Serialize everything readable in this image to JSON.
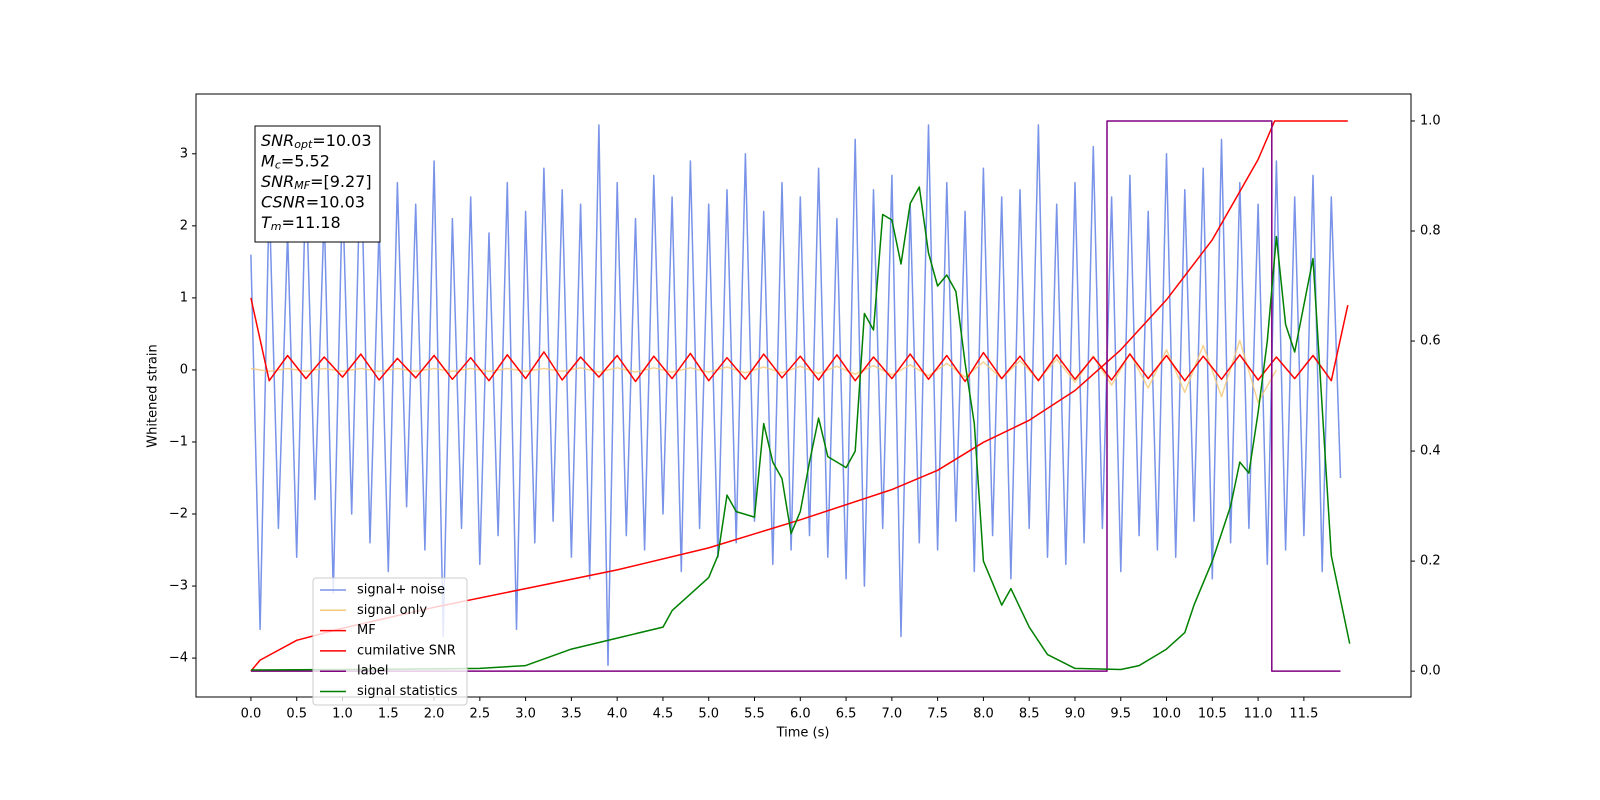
{
  "chart_data": {
    "type": "line",
    "xlabel": "Time (s)",
    "ylabel": "Whitened strain",
    "xlim": [
      -0.6,
      12.67
    ],
    "ylim": [
      -4.54,
      3.83
    ],
    "y2lim": [
      -0.047,
      1.049
    ],
    "xticks": [
      {
        "value": 0,
        "label": "0.0"
      },
      0.5,
      {
        "value": 1,
        "label": "1.0"
      },
      1.5,
      {
        "value": 2,
        "label": "2.0"
      },
      2.5,
      {
        "value": 3,
        "label": "3.0"
      },
      3.5,
      {
        "value": 4,
        "label": "4.0"
      },
      4.5,
      {
        "value": 5,
        "label": "5.0"
      },
      5.5,
      {
        "value": 6,
        "label": "6.0"
      },
      6.5,
      {
        "value": 7,
        "label": "7.0"
      },
      7.5,
      {
        "value": 8,
        "label": "8.0"
      },
      8.5,
      {
        "value": 9,
        "label": "9.0"
      },
      9.5,
      {
        "value": 10,
        "label": "10.0"
      },
      10.5,
      {
        "value": 11,
        "label": "11.0"
      },
      11.5
    ],
    "yticks": [
      {
        "value": -4,
        "label": "−4"
      },
      {
        "value": -3,
        "label": "−3"
      },
      {
        "value": -2,
        "label": "−2"
      },
      {
        "value": -1,
        "label": "−1"
      },
      0,
      1,
      2,
      3
    ],
    "y2ticks": [
      {
        "value": 0,
        "label": "0.0"
      },
      0.2,
      0.4,
      0.6,
      0.8,
      {
        "value": 1,
        "label": "1.0"
      }
    ],
    "legend": "lower left",
    "annotation": [
      {
        "symbol": "SNR",
        "subscript": "opt",
        "text": "=10.03"
      },
      {
        "symbol": "M",
        "subscript": "c",
        "text": "=5.52"
      },
      {
        "symbol": "SNR",
        "subscript": "MF",
        "text": "=[9.27]"
      },
      {
        "symbol": "CSNR",
        "text": "=10.03"
      },
      {
        "symbol": "T",
        "subscript": "m",
        "text": "=11.18"
      }
    ],
    "series": [
      {
        "name": "signal+ noise",
        "color": "#7893e8",
        "x": [
          0,
          0.1,
          0.2,
          0.3,
          0.4,
          0.5,
          0.6,
          0.7,
          0.8,
          0.9,
          1,
          1.1,
          1.2,
          1.3,
          1.4,
          1.5,
          1.6,
          1.7,
          1.8,
          1.9,
          2,
          2.1,
          2.2,
          2.3,
          2.4,
          2.5,
          2.6,
          2.7,
          2.8,
          2.9,
          3,
          3.1,
          3.2,
          3.3,
          3.4,
          3.5,
          3.6,
          3.7,
          3.8,
          3.9,
          4,
          4.1,
          4.2,
          4.3,
          4.4,
          4.5,
          4.6,
          4.7,
          4.8,
          4.9,
          5,
          5.1,
          5.2,
          5.3,
          5.4,
          5.5,
          5.6,
          5.7,
          5.8,
          5.9,
          6,
          6.1,
          6.2,
          6.3,
          6.4,
          6.5,
          6.6,
          6.7,
          6.8,
          6.9,
          7,
          7.1,
          7.2,
          7.3,
          7.4,
          7.5,
          7.6,
          7.7,
          7.8,
          7.9,
          8,
          8.1,
          8.2,
          8.3,
          8.4,
          8.5,
          8.6,
          8.7,
          8.8,
          8.9,
          9,
          9.1,
          9.2,
          9.3,
          9.4,
          9.5,
          9.6,
          9.7,
          9.8,
          9.9,
          10,
          10.1,
          10.2,
          10.3,
          10.4,
          10.5,
          10.6,
          10.7,
          10.8,
          10.9,
          11,
          11.1,
          11.2,
          11.3,
          11.4,
          11.5,
          11.6,
          11.7,
          11.8,
          11.9
        ],
        "values": [
          1.6,
          -3.6,
          2.4,
          -2.2,
          1.9,
          -2.6,
          2.7,
          -1.8,
          2.2,
          -3.1,
          2.5,
          -2.0,
          3.1,
          -2.4,
          2.0,
          -2.8,
          2.6,
          -1.9,
          2.3,
          -2.5,
          2.9,
          -3.7,
          2.1,
          -2.2,
          2.4,
          -2.7,
          1.9,
          -2.3,
          2.6,
          -3.6,
          2.2,
          -2.4,
          2.8,
          -2.1,
          2.5,
          -2.6,
          2.3,
          -2.9,
          3.4,
          -4.1,
          2.6,
          -2.3,
          2.1,
          -2.5,
          2.7,
          -2.0,
          2.4,
          -2.8,
          2.9,
          -2.2,
          2.3,
          -2.6,
          2.5,
          -2.4,
          3.0,
          -2.1,
          2.2,
          -2.7,
          2.6,
          -2.5,
          2.4,
          -2.3,
          2.8,
          -2.6,
          2.1,
          -2.9,
          3.2,
          -3.0,
          2.5,
          -2.2,
          2.7,
          -3.7,
          2.3,
          -2.4,
          3.4,
          -2.5,
          2.6,
          -2.1,
          2.2,
          -2.8,
          2.8,
          -2.3,
          2.4,
          -2.9,
          2.5,
          -2.2,
          3.4,
          -2.6,
          2.3,
          -2.7,
          2.6,
          -2.4,
          3.1,
          -2.2,
          2.4,
          -2.8,
          2.7,
          -2.3,
          2.2,
          -2.5,
          3.0,
          -2.6,
          2.5,
          -2.1,
          2.8,
          -2.9,
          3.2,
          -2.4,
          2.6,
          -2.2,
          2.3,
          -2.7,
          2.9,
          -2.5,
          2.4,
          -2.3,
          2.7,
          -2.8,
          2.4,
          -1.5
        ]
      },
      {
        "name": "signal only",
        "color": "#f5c878",
        "x": [
          0,
          0.2,
          0.4,
          0.6,
          0.8,
          1,
          1.2,
          1.4,
          1.6,
          1.8,
          2,
          2.2,
          2.4,
          2.6,
          2.8,
          3,
          3.2,
          3.4,
          3.6,
          3.8,
          4,
          4.2,
          4.4,
          4.6,
          4.8,
          5,
          5.2,
          5.4,
          5.6,
          5.8,
          6,
          6.2,
          6.4,
          6.6,
          6.8,
          7,
          7.2,
          7.4,
          7.6,
          7.8,
          8,
          8.2,
          8.4,
          8.6,
          8.8,
          9,
          9.2,
          9.4,
          9.6,
          9.8,
          10,
          10.2,
          10.4,
          10.6,
          10.8,
          11,
          11.2
        ],
        "values": [
          0.02,
          -0.02,
          0.02,
          -0.02,
          0.02,
          -0.02,
          0.02,
          -0.02,
          0.02,
          -0.02,
          0.02,
          -0.02,
          0.02,
          -0.02,
          0.02,
          -0.02,
          0.02,
          -0.02,
          0.03,
          -0.03,
          0.03,
          -0.03,
          0.03,
          -0.03,
          0.03,
          -0.03,
          0.04,
          -0.04,
          0.04,
          -0.04,
          0.05,
          -0.05,
          0.05,
          -0.06,
          0.06,
          -0.07,
          0.07,
          -0.08,
          0.09,
          -0.1,
          0.11,
          -0.12,
          0.13,
          -0.14,
          0.15,
          -0.17,
          0.19,
          -0.21,
          0.23,
          -0.25,
          0.28,
          -0.31,
          0.34,
          -0.37,
          0.41,
          -0.45,
          0
        ]
      },
      {
        "name": "MF",
        "color": "#ff0000",
        "x": [
          0,
          0.2,
          0.4,
          0.6,
          0.8,
          1,
          1.2,
          1.4,
          1.6,
          1.8,
          2,
          2.2,
          2.4,
          2.6,
          2.8,
          3,
          3.2,
          3.4,
          3.6,
          3.8,
          4,
          4.2,
          4.4,
          4.6,
          4.8,
          5,
          5.2,
          5.4,
          5.6,
          5.8,
          6,
          6.2,
          6.4,
          6.6,
          6.8,
          7,
          7.2,
          7.4,
          7.6,
          7.8,
          8,
          8.2,
          8.4,
          8.6,
          8.8,
          9,
          9.2,
          9.4,
          9.6,
          9.8,
          10,
          10.2,
          10.4,
          10.6,
          10.8,
          11,
          11.2,
          11.4,
          11.6,
          11.8,
          11.98
        ],
        "values": [
          1.0,
          -0.15,
          0.2,
          -0.12,
          0.18,
          -0.1,
          0.22,
          -0.14,
          0.16,
          -0.11,
          0.2,
          -0.13,
          0.17,
          -0.15,
          0.21,
          -0.12,
          0.25,
          -0.14,
          0.18,
          -0.1,
          0.2,
          -0.16,
          0.19,
          -0.12,
          0.23,
          -0.15,
          0.17,
          -0.13,
          0.22,
          -0.11,
          0.19,
          -0.14,
          0.21,
          -0.15,
          0.18,
          -0.12,
          0.22,
          -0.13,
          0.2,
          -0.16,
          0.24,
          -0.12,
          0.19,
          -0.15,
          0.21,
          -0.13,
          0.18,
          -0.14,
          0.22,
          -0.12,
          0.2,
          -0.15,
          0.19,
          -0.13,
          0.21,
          -0.14,
          0.18,
          -0.12,
          0.2,
          -0.15,
          0.9
        ]
      },
      {
        "name": "cumilative SNR",
        "color": "#ff0000",
        "axis": "y2",
        "x": [
          0,
          0.1,
          0.5,
          1,
          2,
          3,
          4,
          5,
          6,
          7,
          7.5,
          8,
          8.5,
          9,
          9.5,
          10,
          10.5,
          11,
          11.18,
          11.98
        ],
        "values": [
          0,
          0.02,
          0.056,
          0.078,
          0.116,
          0.15,
          0.184,
          0.224,
          0.275,
          0.33,
          0.365,
          0.416,
          0.456,
          0.51,
          0.584,
          0.675,
          0.784,
          0.93,
          1,
          1
        ]
      },
      {
        "name": "label",
        "color": "#800080",
        "axis": "y2",
        "x": [
          0,
          9.35,
          9.35,
          11.15,
          11.15,
          11.9
        ],
        "values": [
          0,
          0,
          1,
          1,
          0,
          0
        ]
      },
      {
        "name": "signal statistics",
        "color": "#008000",
        "axis": "y2",
        "x": [
          0,
          1,
          2,
          2.5,
          3,
          3.5,
          4,
          4.5,
          4.6,
          4.8,
          5,
          5.1,
          5.2,
          5.3,
          5.5,
          5.6,
          5.7,
          5.8,
          5.9,
          6,
          6.1,
          6.2,
          6.3,
          6.5,
          6.6,
          6.7,
          6.8,
          6.9,
          7,
          7.1,
          7.2,
          7.3,
          7.4,
          7.5,
          7.6,
          7.7,
          7.8,
          7.9,
          8,
          8.1,
          8.2,
          8.3,
          8.5,
          8.7,
          9,
          9.5,
          9.7,
          9.9,
          10,
          10.2,
          10.3,
          10.5,
          10.7,
          10.8,
          10.9,
          11,
          11.1,
          11.2,
          11.3,
          11.4,
          11.6,
          11.8,
          12
        ],
        "values": [
          0.002,
          0.003,
          0.004,
          0.005,
          0.01,
          0.04,
          0.06,
          0.08,
          0.11,
          0.14,
          0.17,
          0.21,
          0.32,
          0.29,
          0.28,
          0.45,
          0.38,
          0.35,
          0.25,
          0.29,
          0.38,
          0.46,
          0.39,
          0.37,
          0.4,
          0.65,
          0.62,
          0.83,
          0.82,
          0.74,
          0.85,
          0.88,
          0.76,
          0.7,
          0.72,
          0.69,
          0.56,
          0.45,
          0.2,
          0.16,
          0.12,
          0.15,
          0.08,
          0.03,
          0.005,
          0.003,
          0.01,
          0.03,
          0.04,
          0.07,
          0.12,
          0.2,
          0.3,
          0.38,
          0.36,
          0.47,
          0.6,
          0.79,
          0.63,
          0.58,
          0.75,
          0.21,
          0.05
        ]
      }
    ]
  }
}
